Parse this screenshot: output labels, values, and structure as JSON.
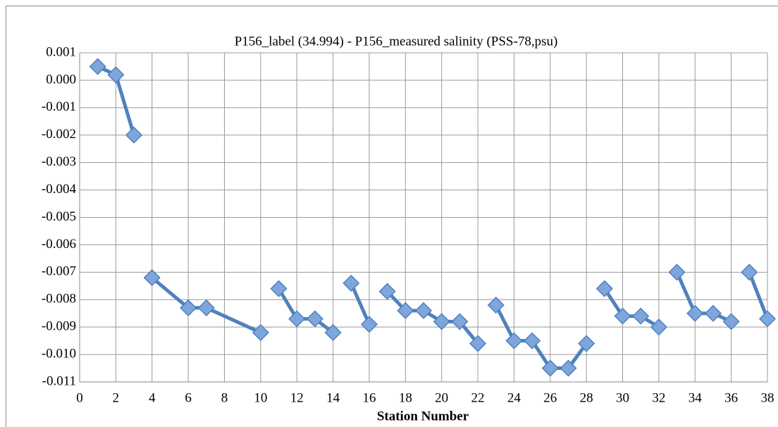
{
  "chart_data": {
    "type": "line",
    "title": "P156_label (34.994) - P156_measured salinity (PSS-78,psu)",
    "x_label": "Station Number",
    "x": [
      1,
      2,
      3,
      null,
      4,
      6,
      7,
      10,
      null,
      11,
      12,
      13,
      14,
      null,
      15,
      16,
      null,
      17,
      18,
      19,
      20,
      21,
      22,
      null,
      23,
      24,
      25,
      26,
      27,
      28,
      null,
      29,
      30,
      31,
      32,
      null,
      33,
      34,
      35,
      36,
      null,
      37,
      38
    ],
    "series": [
      {
        "color": "#4f81bd",
        "marker_color": "#7ea6dc",
        "values": [
          0.0005,
          0.0002,
          -0.002,
          null,
          -0.0072,
          -0.0083,
          -0.0083,
          -0.0092,
          null,
          -0.0076,
          -0.0087,
          -0.0087,
          -0.0092,
          null,
          -0.0074,
          -0.0089,
          null,
          -0.0077,
          -0.0084,
          -0.0084,
          -0.0088,
          -0.0088,
          -0.0096,
          null,
          -0.0082,
          -0.0095,
          -0.0095,
          -0.0105,
          -0.0105,
          -0.0096,
          null,
          -0.0076,
          -0.0086,
          -0.0086,
          -0.009,
          null,
          -0.007,
          -0.0085,
          -0.0085,
          -0.0088,
          null,
          -0.007,
          -0.0087
        ]
      }
    ],
    "xlim": [
      0,
      38
    ],
    "xticks": [
      0,
      2,
      4,
      6,
      8,
      10,
      12,
      14,
      16,
      18,
      20,
      22,
      24,
      26,
      28,
      30,
      32,
      34,
      36,
      38
    ],
    "ylim": [
      -0.011,
      0.001
    ],
    "yticks": [
      0.001,
      {
        "value": 0,
        "label": "0.000"
      },
      -0.001,
      -0.002,
      -0.003,
      -0.004,
      -0.005,
      -0.006,
      -0.007,
      -0.008,
      -0.009,
      {
        "value": -0.01,
        "label": "-0.010"
      },
      -0.011
    ],
    "grid": true
  }
}
